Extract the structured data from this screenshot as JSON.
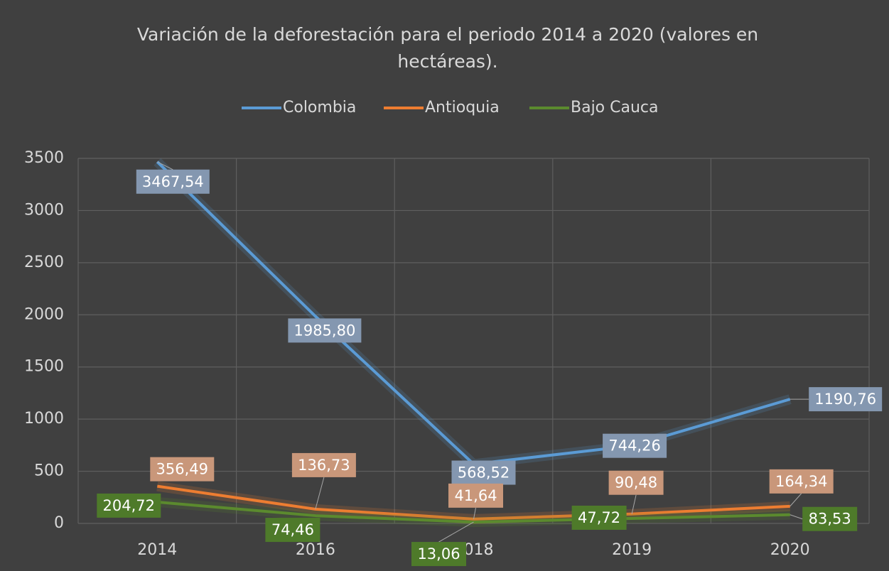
{
  "chart_data": {
    "type": "line",
    "title": "Variación de la deforestación para el periodo 2014 a 2020 (valores en hectáreas).",
    "categories": [
      "2014",
      "2016",
      "2018",
      "2019",
      "2020"
    ],
    "series": [
      {
        "name": "Colombia",
        "color": "#5b9bd5",
        "label_color": "#8497b0",
        "values": [
          3467.54,
          1985.8,
          568.52,
          744.26,
          1190.76
        ],
        "value_labels": [
          "3467,54",
          "1985,80",
          "568,52",
          "744,26",
          "1190,76"
        ]
      },
      {
        "name": "Antioquia",
        "color": "#ed7d31",
        "label_color": "#c9977a",
        "values": [
          356.49,
          136.73,
          41.64,
          90.48,
          164.34
        ],
        "value_labels": [
          "356,49",
          "136,73",
          "41,64",
          "90,48",
          "164,34"
        ]
      },
      {
        "name": "Bajo Cauca",
        "color": "#5b8a2e",
        "label_color": "#4e7a2a",
        "values": [
          204.72,
          74.46,
          13.06,
          47.72,
          83.53
        ],
        "value_labels": [
          "204,72",
          "74,46",
          "13,06",
          "47,72",
          "83,53"
        ]
      }
    ],
    "ylim": [
      0,
      3500
    ],
    "yticks": [
      0,
      500,
      1000,
      1500,
      2000,
      2500,
      3000,
      3500
    ],
    "grid": true,
    "legend": "top"
  }
}
